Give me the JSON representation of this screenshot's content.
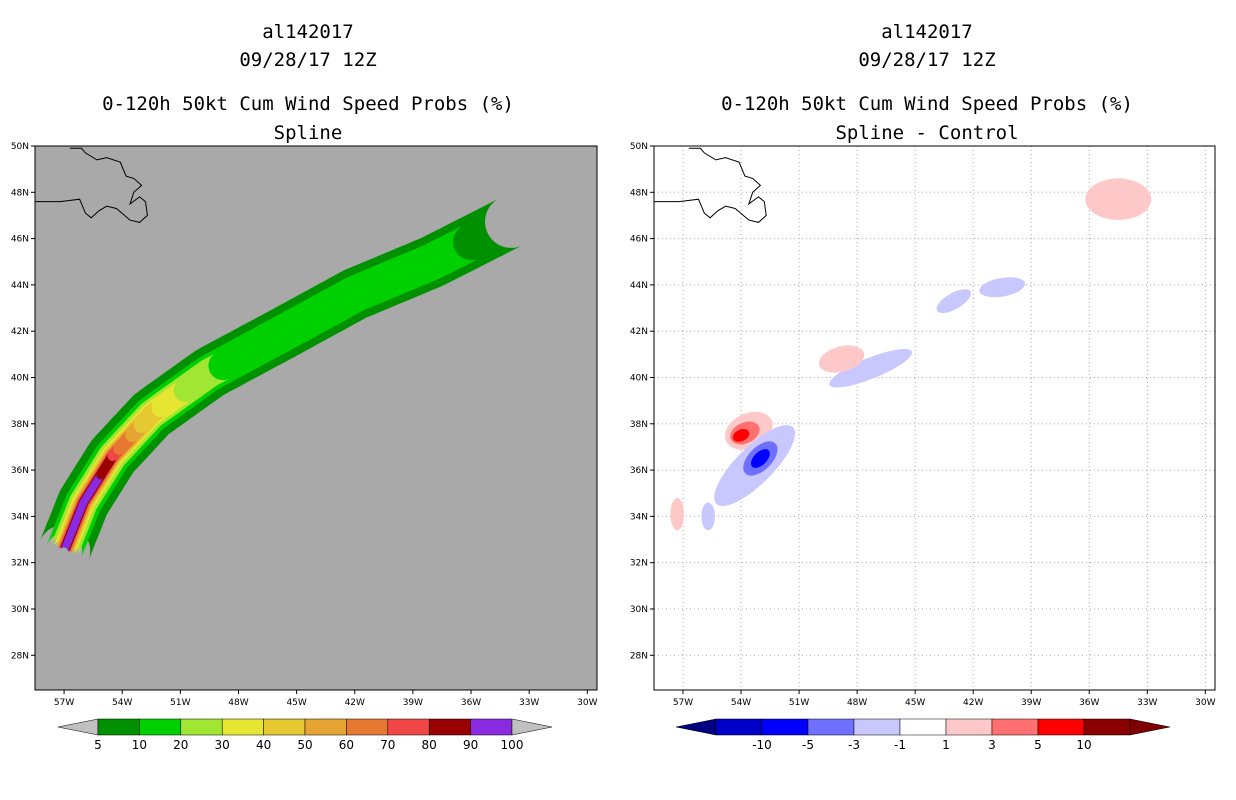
{
  "colors": {
    "panel_bg_left": "#a9a9a9",
    "panel_bg_right": "#ffffff",
    "prob_levels": [
      "#009000",
      "#00d000",
      "#a0e632",
      "#e6e632",
      "#e6c832",
      "#e6a532",
      "#e67832",
      "#f04646",
      "#990000",
      "#8a2be2"
    ],
    "prob_under": "#c0c0c0",
    "prob_over": "#c0c0c0",
    "diff_levels": [
      "#0000c8",
      "#0000ff",
      "#7070ff",
      "#c8c8ff",
      "#ffffff",
      "#ffc8c8",
      "#ff7070",
      "#ff0000",
      "#8b0000"
    ],
    "diff_under": "#000080",
    "diff_over": "#800000"
  },
  "chart_data": [
    {
      "type": "heatmap",
      "storm_id": "al142017",
      "datetime": "09/28/17 12Z",
      "title": "0-120h 50kt Cum Wind Speed Probs (%)",
      "subtitle": "Spline",
      "xlim": [
        -58.5,
        -29.5
      ],
      "ylim": [
        26.5,
        50
      ],
      "x_ticks": [
        -57,
        -54,
        -51,
        -48,
        -45,
        -42,
        -39,
        -36,
        -33,
        -30
      ],
      "x_tick_labels": [
        "57W",
        "54W",
        "51W",
        "48W",
        "45W",
        "42W",
        "39W",
        "36W",
        "33W",
        "30W"
      ],
      "y_ticks": [
        28,
        30,
        32,
        34,
        36,
        38,
        40,
        42,
        44,
        46,
        48,
        50
      ],
      "y_tick_labels": [
        "28N",
        "30N",
        "32N",
        "34N",
        "36N",
        "38N",
        "40N",
        "42N",
        "44N",
        "46N",
        "48N",
        "50N"
      ],
      "grid": false,
      "colorbar_levels": [
        "5",
        "10",
        "20",
        "30",
        "40",
        "50",
        "60",
        "70",
        "80",
        "90",
        "100"
      ],
      "track_spine": [
        [
          -57.0,
          32.5
        ],
        [
          -56.0,
          34.6
        ],
        [
          -54.5,
          36.6
        ],
        [
          -52.5,
          38.4
        ],
        [
          -49.5,
          40.2
        ],
        [
          -45.5,
          42.0
        ],
        [
          -42.0,
          43.6
        ],
        [
          -38.0,
          45.0
        ],
        [
          -34.0,
          46.7
        ]
      ],
      "contours": [
        {
          "level": "5",
          "spine_frac": [
            0.0,
            1.0
          ],
          "half_width_deg": 1.35
        },
        {
          "level": "10",
          "spine_frac": [
            0.0,
            0.93
          ],
          "half_width_deg": 0.95
        },
        {
          "level": "20",
          "spine_frac": [
            0.0,
            0.45
          ],
          "half_width_deg": 0.75
        },
        {
          "level": "30",
          "spine_frac": [
            0.0,
            0.36
          ],
          "half_width_deg": 0.6
        },
        {
          "level": "40",
          "spine_frac": [
            0.0,
            0.31
          ],
          "half_width_deg": 0.5
        },
        {
          "level": "50",
          "spine_frac": [
            0.0,
            0.27
          ],
          "half_width_deg": 0.42
        },
        {
          "level": "60",
          "spine_frac": [
            0.0,
            0.24
          ],
          "half_width_deg": 0.36
        },
        {
          "level": "70",
          "spine_frac": [
            0.0,
            0.21
          ],
          "half_width_deg": 0.3
        },
        {
          "level": "80",
          "spine_frac": [
            0.0,
            0.19
          ],
          "half_width_deg": 0.26
        },
        {
          "level": "90",
          "spine_frac": [
            0.0,
            0.15
          ],
          "half_width_deg": 0.2
        }
      ]
    },
    {
      "type": "heatmap",
      "storm_id": "al142017",
      "datetime": "09/28/17 12Z",
      "title": "0-120h 50kt Cum Wind Speed Probs (%)",
      "subtitle": "Spline - Control",
      "xlim": [
        -58.5,
        -29.5
      ],
      "ylim": [
        26.5,
        50
      ],
      "x_ticks": [
        -57,
        -54,
        -51,
        -48,
        -45,
        -42,
        -39,
        -36,
        -33,
        -30
      ],
      "x_tick_labels": [
        "57W",
        "54W",
        "51W",
        "48W",
        "45W",
        "42W",
        "39W",
        "36W",
        "33W",
        "30W"
      ],
      "y_ticks": [
        28,
        30,
        32,
        34,
        36,
        38,
        40,
        42,
        44,
        46,
        48,
        50
      ],
      "y_tick_labels": [
        "28N",
        "30N",
        "32N",
        "34N",
        "36N",
        "38N",
        "40N",
        "42N",
        "44N",
        "46N",
        "48N",
        "50N"
      ],
      "grid": true,
      "colorbar_levels": [
        "-10",
        "-5",
        "-3",
        "-1",
        "1",
        "3",
        "5",
        "10"
      ],
      "blobs": [
        {
          "sign": "positive",
          "level": "1",
          "center": [
            -53.6,
            37.7
          ],
          "radii": [
            1.3,
            0.75
          ],
          "rotation_deg": -25
        },
        {
          "sign": "positive",
          "level": "3",
          "center": [
            -53.8,
            37.6
          ],
          "radii": [
            0.8,
            0.45
          ],
          "rotation_deg": -25
        },
        {
          "sign": "positive",
          "level": "5",
          "center": [
            -54.0,
            37.5
          ],
          "radii": [
            0.45,
            0.25
          ],
          "rotation_deg": -25
        },
        {
          "sign": "negative",
          "level": "-1",
          "center": [
            -53.3,
            36.2
          ],
          "radii": [
            2.8,
            0.8
          ],
          "rotation_deg": -45
        },
        {
          "sign": "negative",
          "level": "-3",
          "center": [
            -53.0,
            36.5
          ],
          "radii": [
            1.1,
            0.5
          ],
          "rotation_deg": -45
        },
        {
          "sign": "negative",
          "level": "-5",
          "center": [
            -53.0,
            36.5
          ],
          "radii": [
            0.6,
            0.28
          ],
          "rotation_deg": -45
        },
        {
          "sign": "negative",
          "level": "-1",
          "center": [
            -47.3,
            40.4
          ],
          "radii": [
            2.3,
            0.45
          ],
          "rotation_deg": -22
        },
        {
          "sign": "negative",
          "level": "-1",
          "center": [
            -43.0,
            43.3
          ],
          "radii": [
            1.0,
            0.35
          ],
          "rotation_deg": -30
        },
        {
          "sign": "negative",
          "level": "-1",
          "center": [
            -40.5,
            43.9
          ],
          "radii": [
            1.2,
            0.4
          ],
          "rotation_deg": -10
        },
        {
          "sign": "negative",
          "level": "-1",
          "center": [
            -55.7,
            34.0
          ],
          "radii": [
            0.35,
            0.6
          ],
          "rotation_deg": 0
        },
        {
          "sign": "positive",
          "level": "1",
          "center": [
            -48.8,
            40.8
          ],
          "radii": [
            1.2,
            0.55
          ],
          "rotation_deg": -15
        },
        {
          "sign": "positive",
          "level": "1",
          "center": [
            -57.3,
            34.1
          ],
          "radii": [
            0.35,
            0.7
          ],
          "rotation_deg": 0
        },
        {
          "sign": "positive",
          "level": "1",
          "center": [
            -34.5,
            47.7
          ],
          "radii": [
            1.7,
            0.9
          ],
          "rotation_deg": 0
        }
      ]
    }
  ]
}
